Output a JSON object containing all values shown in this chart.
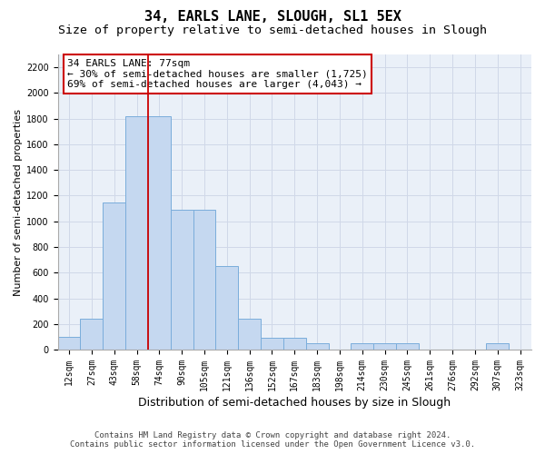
{
  "title": "34, EARLS LANE, SLOUGH, SL1 5EX",
  "subtitle": "Size of property relative to semi-detached houses in Slough",
  "xlabel": "Distribution of semi-detached houses by size in Slough",
  "ylabel": "Number of semi-detached properties",
  "categories": [
    "12sqm",
    "27sqm",
    "43sqm",
    "58sqm",
    "74sqm",
    "90sqm",
    "105sqm",
    "121sqm",
    "136sqm",
    "152sqm",
    "167sqm",
    "183sqm",
    "198sqm",
    "214sqm",
    "230sqm",
    "245sqm",
    "261sqm",
    "276sqm",
    "292sqm",
    "307sqm",
    "323sqm"
  ],
  "values": [
    100,
    240,
    1150,
    1820,
    1820,
    1090,
    1090,
    650,
    240,
    90,
    90,
    50,
    0,
    50,
    50,
    50,
    0,
    0,
    0,
    50,
    0
  ],
  "bar_color": "#c5d8f0",
  "bar_edge_color": "#7aaddb",
  "grid_color": "#d0d8e8",
  "background_color": "#eaf0f8",
  "annotation_box_edge_color": "#cc0000",
  "property_line_color": "#cc0000",
  "property_bar_index": 4,
  "annotation_title": "34 EARLS LANE: 77sqm",
  "annotation_line1": "← 30% of semi-detached houses are smaller (1,725)",
  "annotation_line2": "69% of semi-detached houses are larger (4,043) →",
  "ylim": [
    0,
    2300
  ],
  "yticks": [
    0,
    200,
    400,
    600,
    800,
    1000,
    1200,
    1400,
    1600,
    1800,
    2000,
    2200
  ],
  "footer_line1": "Contains HM Land Registry data © Crown copyright and database right 2024.",
  "footer_line2": "Contains public sector information licensed under the Open Government Licence v3.0.",
  "title_fontsize": 11,
  "subtitle_fontsize": 9.5,
  "annotation_fontsize": 8,
  "tick_fontsize": 7,
  "ylabel_fontsize": 8,
  "xlabel_fontsize": 9,
  "footer_fontsize": 6.5
}
